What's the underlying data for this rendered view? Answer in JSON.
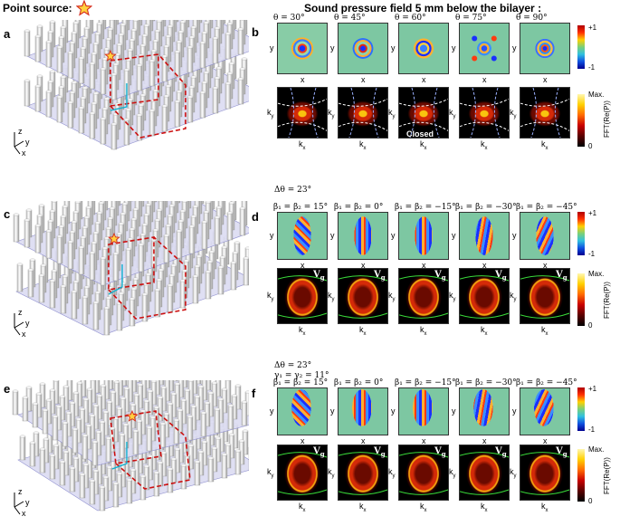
{
  "header": {
    "point_source_label": "Point source:",
    "panel_title": "Sound pressure field 5 mm below the bilayer :"
  },
  "panels": {
    "a": "a",
    "b": "b",
    "c": "c",
    "d": "d",
    "e": "e",
    "f": "f"
  },
  "axes": {
    "z": "z",
    "y": "y",
    "x": "x",
    "kx": "k",
    "ky": "k",
    "sub_x": "x",
    "sub_y": "y"
  },
  "row_b": {
    "titles": [
      "θ = 30°",
      "θ = 45°",
      "θ = 60°",
      "θ = 75°",
      "θ = 90°"
    ],
    "closed_label": "Closed"
  },
  "row_d": {
    "header_lines": [
      "Δθ = 23°"
    ],
    "titles": [
      "β₁ = β₂ = 15°",
      "β₁ = β₂ = 0°",
      "β₁ = β₂ = −15°",
      "β₁ = β₂ = −30°",
      "β₁ = β₂ = −45°"
    ]
  },
  "row_f": {
    "header_lines": [
      "Δθ = 23°",
      "γ₁ = γ₂ = 11°"
    ],
    "titles": [
      "β₁ = β₂ = 15°",
      "β₁ = β₂ = 0°",
      "β₁ = β₂ = −15°",
      "β₁ = β₂ = −30°",
      "β₁ = β₂ = −45°"
    ]
  },
  "group_velocity_label": "V",
  "group_velocity_sub": "g",
  "colorbar_field": {
    "top": "+1",
    "bottom": "-1"
  },
  "colorbar_fft": {
    "top": "Max.",
    "bottom": "0",
    "axis_label": "FFT(Re(P))"
  }
}
